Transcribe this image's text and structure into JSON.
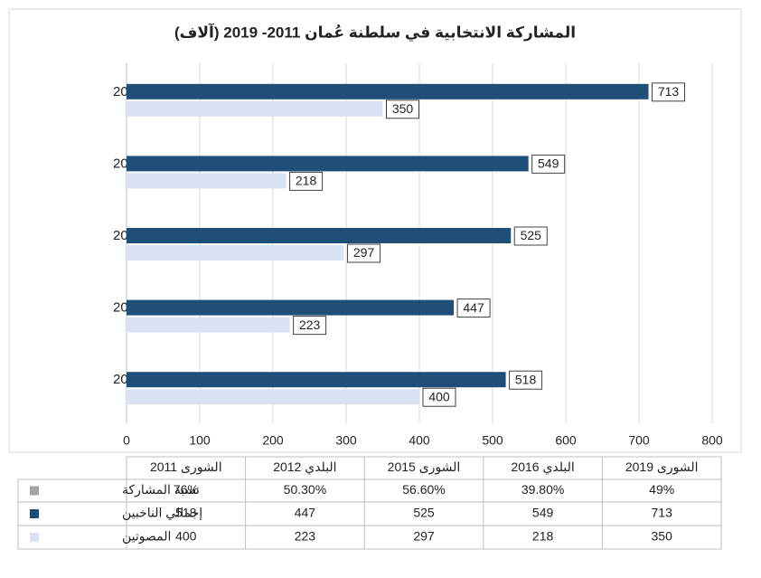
{
  "chart_data": {
    "type": "bar",
    "orientation": "horizontal",
    "title": "المشاركة الانتخابية في سلطنة عُمان 2011- 2019 (آلاف)",
    "categories": [
      "الشورى 2011",
      "البلدي 2012",
      "الشورى 2015",
      "البلدي 2016",
      "الشورى 2019"
    ],
    "series": [
      {
        "name": "نسبة المشاركة",
        "color": "#a5a5a5",
        "values": [
          76,
          50.3,
          56.6,
          39.8,
          49
        ],
        "value_labels": [
          "76%",
          "50.30%",
          "56.60%",
          "39.80%",
          "49%"
        ]
      },
      {
        "name": "إجمالي الناخبين",
        "color": "#1f4e79",
        "values": [
          518,
          447,
          525,
          549,
          713
        ]
      },
      {
        "name": "المصوتين",
        "color": "#dae3f3",
        "values": [
          400,
          223,
          297,
          218,
          350
        ]
      }
    ],
    "xlim": [
      0,
      800
    ],
    "xticks": [
      0,
      100,
      200,
      300,
      400,
      500,
      600,
      700,
      800
    ],
    "grid": true
  }
}
